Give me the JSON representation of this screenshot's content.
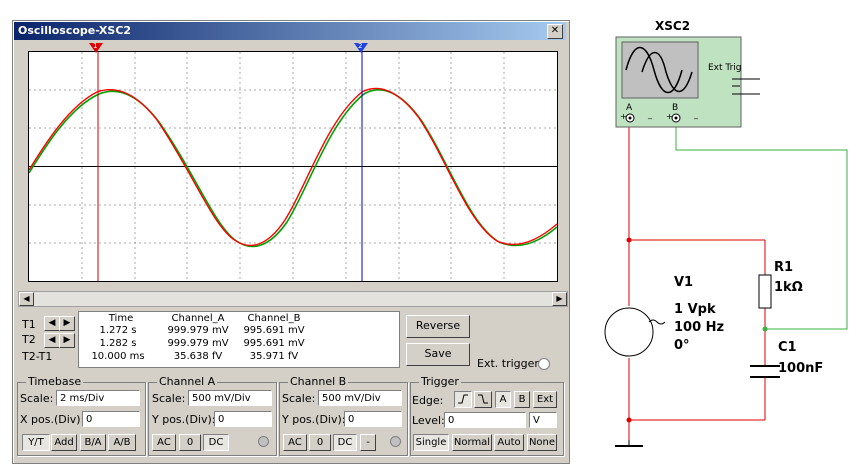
{
  "window": {
    "title": "Oscilloscope-XSC2",
    "close_glyph": "✕"
  },
  "cursors": {
    "t1_marker": "1",
    "t2_marker": "2"
  },
  "readout": {
    "headers": [
      "Time",
      "Channel_A",
      "Channel_B"
    ],
    "row_labels": [
      "T1",
      "T2",
      "T2-T1"
    ],
    "rows": [
      [
        "1.272 s",
        "999.979 mV",
        "995.691 mV"
      ],
      [
        "1.282 s",
        "999.979 mV",
        "995.691 mV"
      ],
      [
        "10.000 ms",
        "35.638 fV",
        "35.971 fV"
      ]
    ]
  },
  "buttons": {
    "reverse": "Reverse",
    "save": "Save",
    "ext_trigger": "Ext. trigger"
  },
  "timebase": {
    "title": "Timebase",
    "scale_label": "Scale:",
    "scale": "2 ms/Div",
    "xpos_label": "X pos.(Div):",
    "xpos": "0",
    "modes": [
      "Y/T",
      "Add",
      "B/A",
      "A/B"
    ]
  },
  "channel_a": {
    "title": "Channel A",
    "scale_label": "Scale:",
    "scale": "500 mV/Div",
    "ypos_label": "Y pos.(Div):",
    "ypos": "0",
    "coupling": [
      "AC",
      "0",
      "DC"
    ]
  },
  "channel_b": {
    "title": "Channel B",
    "scale_label": "Scale:",
    "scale": "500 mV/Div",
    "ypos_label": "Y pos.(Div):",
    "ypos": "0",
    "coupling": [
      "AC",
      "0",
      "DC",
      "-"
    ]
  },
  "trigger": {
    "title": "Trigger",
    "edge_label": "Edge:",
    "edge_buttons": [
      "A",
      "B",
      "Ext"
    ],
    "level_label": "Level:",
    "level": "0",
    "level_unit": "V",
    "modes": [
      "Single",
      "Normal",
      "Auto",
      "None"
    ]
  },
  "schematic": {
    "scope_label": "XSC2",
    "ext_trig": "Ext Trig",
    "port_a": "A",
    "port_b": "B",
    "plus": "+",
    "minus": "_",
    "v1": {
      "name": "V1",
      "amp": "1 Vpk",
      "freq": "100 Hz",
      "phase": "0°"
    },
    "r1": {
      "name": "R1",
      "value": "1kΩ"
    },
    "c1": {
      "name": "C1",
      "value": "100nF"
    }
  },
  "colors": {
    "channel_a": "#ff0000",
    "channel_b": "#00a000",
    "cursor_t1": "#cc0000",
    "cursor_t2": "#0000cc",
    "wire_red": "#e00000",
    "wire_green": "#3cb043",
    "instrument_bg": "#bfe3c1"
  }
}
